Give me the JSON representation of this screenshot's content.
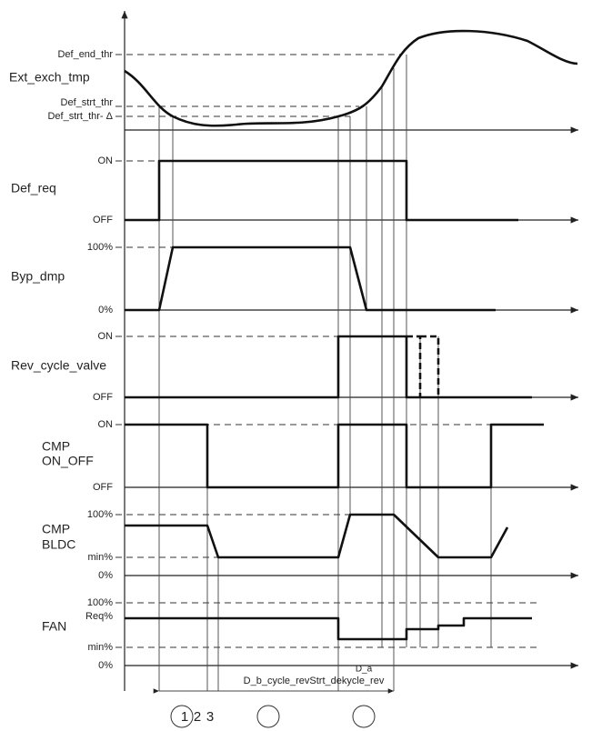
{
  "signals": [
    {
      "name": [
        "Ext_exch_tmp"
      ],
      "levels": [
        "Def_end_thr",
        "Def_strt_thr",
        "Def_strt_thr- Δ"
      ]
    },
    {
      "name": [
        "Def_req"
      ],
      "levels": [
        "ON",
        "OFF"
      ]
    },
    {
      "name": [
        "Byp_dmp"
      ],
      "levels": [
        "100%",
        "0%"
      ]
    },
    {
      "name": [
        "Rev_cycle_valve"
      ],
      "levels": [
        "ON",
        "OFF"
      ]
    },
    {
      "name": [
        "CMP",
        "ON_OFF"
      ],
      "levels": [
        "ON",
        "OFF"
      ]
    },
    {
      "name": [
        "CMP",
        "BLDC"
      ],
      "levels": [
        "100%",
        "min%",
        "0%"
      ]
    },
    {
      "name": [
        "FAN"
      ],
      "levels": [
        "100%",
        "Req%",
        "min%",
        "0%"
      ]
    }
  ],
  "timing": {
    "labels": [
      "D_b_cycle_revStrt_dekycle_rev",
      "D_a"
    ],
    "steps": [
      "1",
      "2",
      "3"
    ]
  }
}
